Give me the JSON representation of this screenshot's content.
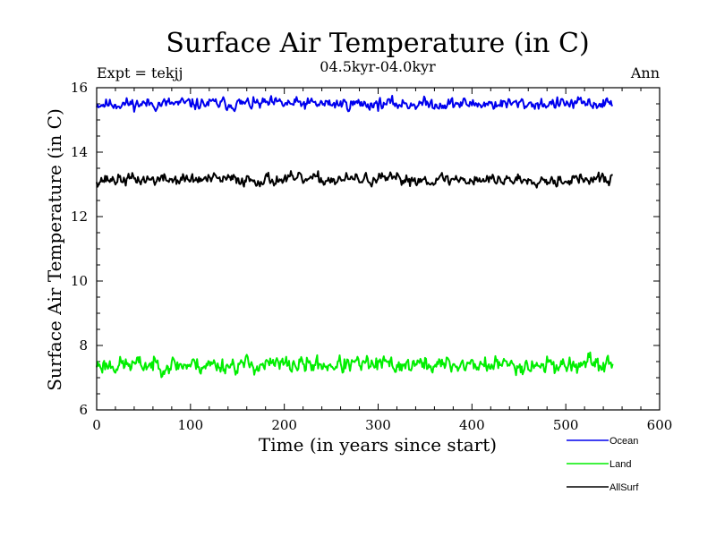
{
  "chart_data": {
    "type": "line",
    "title": "Surface Air Temperature (in C)",
    "subtitle": "04.5kyr-04.0kyr",
    "left_label": "Expt = tekjj",
    "right_label": "Ann",
    "xlabel": "Time (in years since start)",
    "ylabel": "Surface Air Temperature (in C)",
    "xlim": [
      0,
      600
    ],
    "ylim": [
      6,
      16
    ],
    "xticks": [
      0,
      100,
      200,
      300,
      400,
      500,
      600
    ],
    "yticks": [
      6,
      8,
      10,
      12,
      14,
      16
    ],
    "x_start": 0,
    "x_end": 550,
    "legend_position": "bottom-right",
    "series": [
      {
        "name": "Ocean",
        "color": "#0000ee",
        "mean": 15.5,
        "amplitude": 0.12,
        "min": 15.25,
        "max": 15.75,
        "seed": 11
      },
      {
        "name": "Land",
        "color": "#00ee00",
        "mean": 7.4,
        "amplitude": 0.17,
        "min": 6.9,
        "max": 7.85,
        "seed": 23
      },
      {
        "name": "AllSurf",
        "color": "#000000",
        "mean": 13.15,
        "amplitude": 0.12,
        "min": 12.9,
        "max": 13.5,
        "seed": 37
      }
    ]
  }
}
